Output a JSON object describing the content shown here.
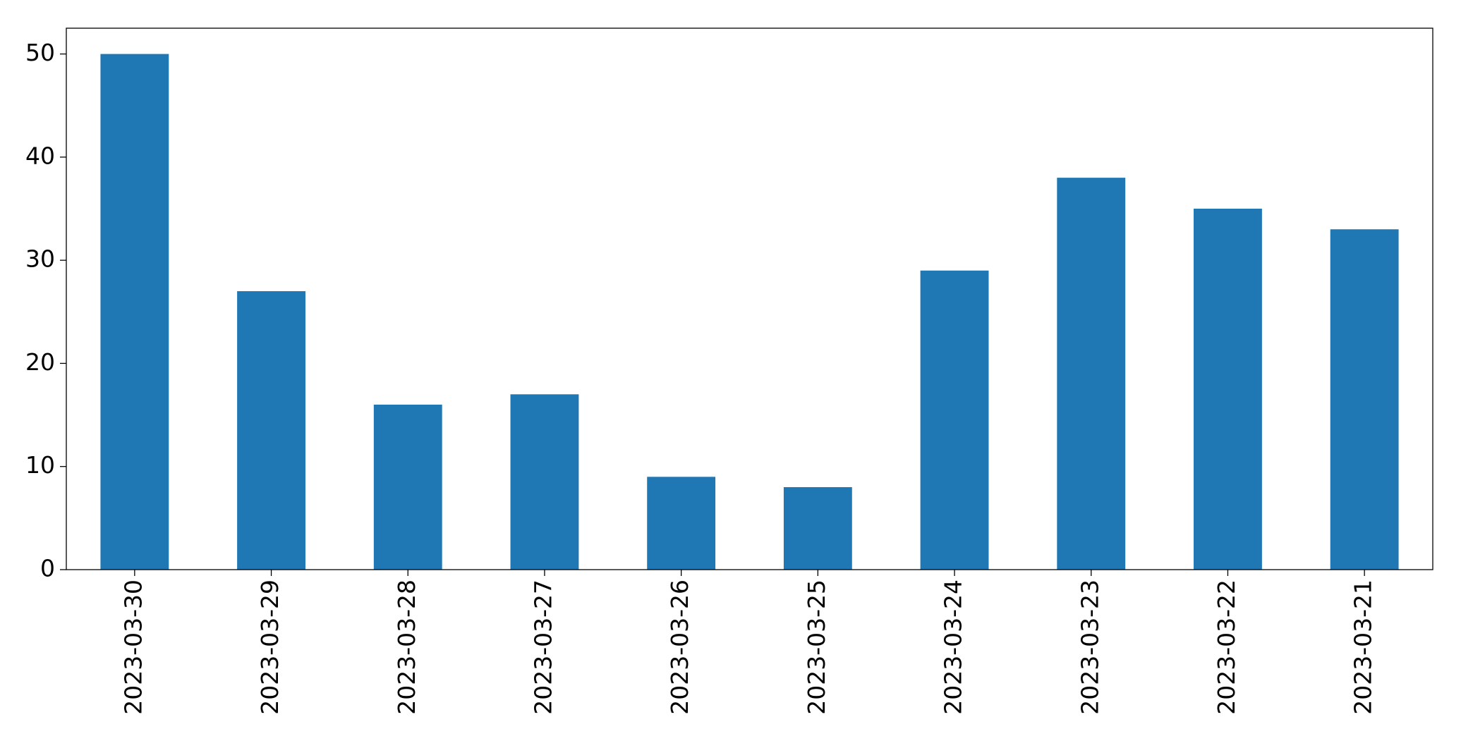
{
  "chart_data": {
    "type": "bar",
    "categories": [
      "2023-03-30",
      "2023-03-29",
      "2023-03-28",
      "2023-03-27",
      "2023-03-26",
      "2023-03-25",
      "2023-03-24",
      "2023-03-23",
      "2023-03-22",
      "2023-03-21"
    ],
    "values": [
      50,
      27,
      16,
      17,
      9,
      8,
      29,
      38,
      35,
      33
    ],
    "color": "#1f77b4",
    "ylim": [
      0,
      52.5
    ],
    "yticks": [
      0,
      10,
      20,
      30,
      40,
      50
    ],
    "grid": false
  }
}
